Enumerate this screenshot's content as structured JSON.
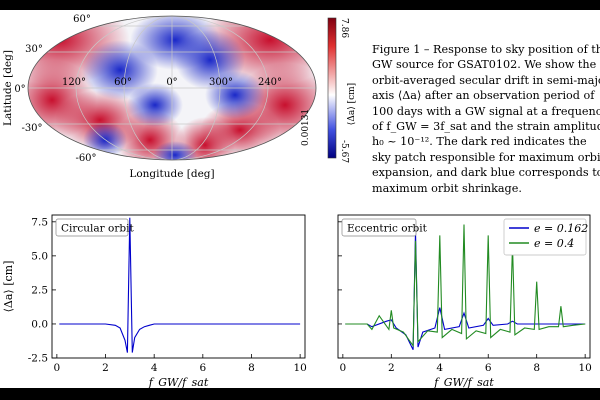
{
  "skymap": {
    "lat_label": "Latitude [deg]",
    "lon_label": "Longitude [deg]",
    "lat_ticks": [
      "60°",
      "30°",
      "0°",
      "-30°",
      "-60°"
    ],
    "lon_ticks": [
      "120°",
      "60°",
      "0°",
      "300°",
      "240°"
    ],
    "colorbar_max": "7.86",
    "colorbar_mid": "0.00131",
    "colorbar_min": "-5.67",
    "colorbar_label": "⟨Δa⟩ [cm]",
    "colors": {
      "red": "#c8102e",
      "blue": "#1a28c8",
      "mid": "#ffffff"
    }
  },
  "caption": {
    "lines": [
      "Figure 1 – Response to sky position of the",
      "GW source for GSAT0102.  We show the",
      "orbit-averaged secular drift in semi-major",
      "axis ⟨Δa⟩ after an observation period of",
      "100 days with a GW signal at a frequency",
      "of f_GW = 3f_sat and the strain amplitude",
      "h₀ ~ 10⁻¹².  The dark red indicates the",
      "sky patch responsible for maximum orbit",
      "expansion, and dark blue corresponds to",
      "maximum orbit shrinkage."
    ]
  },
  "chart_data": [
    {
      "type": "line",
      "title": "Circular orbit",
      "xlabel": "f_GW/f_sat",
      "ylabel": "⟨Δa⟩ [cm]",
      "xlim": [
        -0.2,
        10.2
      ],
      "ylim": [
        -2.5,
        8.0
      ],
      "xticks": [
        0,
        2,
        4,
        6,
        8,
        10
      ],
      "yticks": [
        -2.5,
        0.0,
        2.5,
        5.0,
        7.5
      ],
      "series": [
        {
          "name": "circular",
          "color": "#0000cc",
          "x": [
            0.1,
            1.0,
            2.0,
            2.4,
            2.6,
            2.8,
            2.9,
            3.0,
            3.1,
            3.2,
            3.4,
            3.6,
            3.8,
            4.0,
            5.0,
            10.0
          ],
          "y": [
            0.0,
            0.0,
            0.0,
            -0.1,
            -0.3,
            -1.2,
            -2.1,
            7.8,
            -2.1,
            -1.0,
            -0.4,
            -0.2,
            -0.1,
            0.0,
            0.0,
            0.0
          ]
        }
      ]
    },
    {
      "type": "line",
      "title": "Eccentric orbit",
      "xlabel": "f_GW/f_sat",
      "ylabel": "",
      "xlim": [
        -0.2,
        10.2
      ],
      "ylim": [
        -2.5,
        8.0
      ],
      "xticks": [
        0,
        2,
        4,
        6,
        8,
        10
      ],
      "yticks": [],
      "legend": "top-right",
      "series": [
        {
          "name": "e = 0.162",
          "color": "#0000cc",
          "x": [
            0.1,
            1.0,
            1.2,
            1.8,
            2.0,
            2.2,
            2.6,
            2.9,
            3.0,
            3.1,
            3.3,
            3.8,
            4.0,
            4.2,
            4.8,
            5.0,
            5.2,
            5.8,
            6.0,
            6.2,
            6.8,
            7.0,
            7.2,
            8.0,
            9.0,
            10.0
          ],
          "y": [
            0.0,
            0.0,
            -0.2,
            0.2,
            0.3,
            -0.3,
            -0.8,
            -1.9,
            6.8,
            -1.7,
            -0.6,
            -0.3,
            1.2,
            -0.4,
            -0.2,
            0.8,
            -0.3,
            -0.1,
            0.4,
            -0.1,
            0.0,
            0.2,
            0.0,
            0.0,
            0.0,
            0.0
          ]
        },
        {
          "name": "e = 0.4",
          "color": "#228b22",
          "x": [
            0.1,
            1.0,
            1.2,
            1.5,
            1.9,
            2.0,
            2.1,
            2.5,
            2.9,
            3.0,
            3.1,
            3.5,
            3.9,
            4.0,
            4.1,
            4.5,
            4.9,
            5.0,
            5.1,
            5.5,
            5.9,
            6.0,
            6.1,
            6.5,
            6.9,
            7.0,
            7.1,
            7.5,
            7.9,
            8.0,
            8.1,
            8.5,
            8.9,
            9.0,
            9.1,
            9.5,
            10.0
          ],
          "y": [
            0.0,
            0.0,
            -0.4,
            0.6,
            -0.4,
            1.0,
            -0.3,
            -0.6,
            -1.6,
            6.1,
            -1.3,
            -0.5,
            -0.6,
            6.5,
            -1.0,
            -0.4,
            -0.7,
            7.3,
            -1.1,
            -0.5,
            -0.7,
            6.5,
            -1.0,
            -0.4,
            -0.6,
            5.8,
            -0.8,
            -0.3,
            -0.4,
            3.1,
            -0.4,
            -0.2,
            -0.2,
            1.3,
            -0.2,
            -0.1,
            0.0
          ]
        }
      ]
    }
  ]
}
